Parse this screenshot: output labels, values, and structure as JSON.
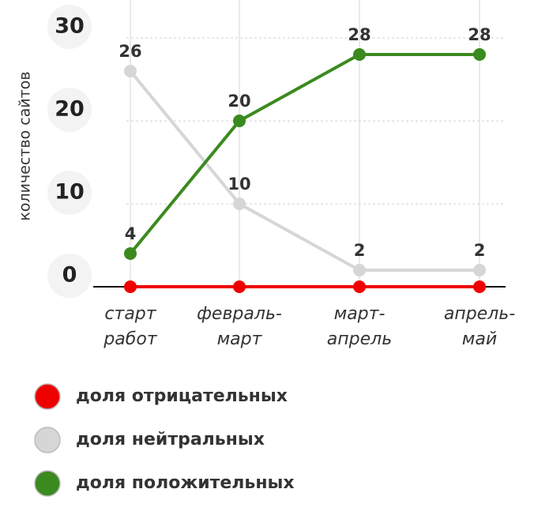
{
  "chart_data": {
    "type": "line",
    "y_label": "количество сайтов",
    "categories": [
      [
        "старт",
        "работ"
      ],
      [
        "февраль-",
        "март"
      ],
      [
        "март-",
        "апрель"
      ],
      [
        "апрель-",
        "май"
      ]
    ],
    "ylim": [
      0,
      30
    ],
    "yticks": [
      0,
      10,
      20,
      30
    ],
    "grid": true,
    "series": [
      {
        "name": "доля отрицательных",
        "color": "#ee0000",
        "values": [
          0,
          0,
          0,
          0
        ]
      },
      {
        "name": "доля нейтральных",
        "color": "#d6d6d6",
        "values": [
          26,
          10,
          2,
          2
        ],
        "labels": true
      },
      {
        "name": "доля положительных",
        "color": "#3b8a1f",
        "values": [
          4,
          20,
          28,
          28
        ],
        "labels": true
      }
    ]
  }
}
